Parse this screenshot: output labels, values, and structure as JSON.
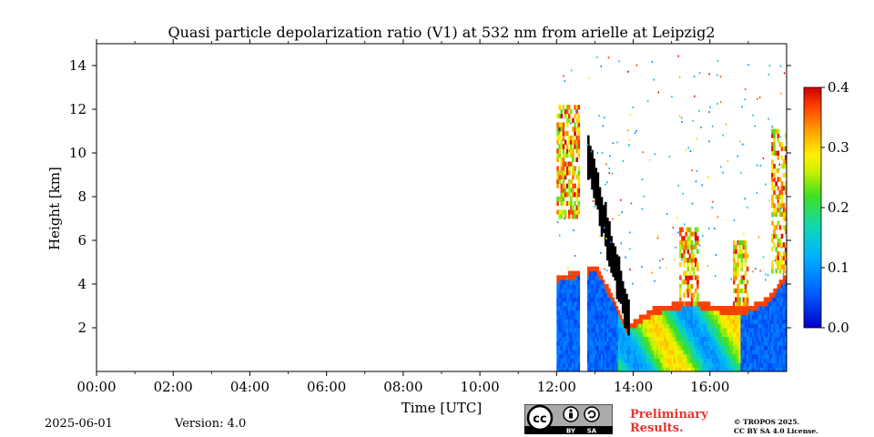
{
  "chart_data": {
    "type": "heatmap",
    "title": "Quasi particle depolarization ratio (V1) at 532 nm from arielle at Leipzig2",
    "xlabel": "Time [UTC]",
    "ylabel": "Height [km]",
    "x_range_hours": [
      0,
      18
    ],
    "y_range_km": [
      0,
      15
    ],
    "x_ticks": [
      "00:00",
      "02:00",
      "04:00",
      "06:00",
      "08:00",
      "10:00",
      "12:00",
      "14:00",
      "16:00"
    ],
    "y_ticks": [
      "2",
      "4",
      "6",
      "8",
      "10",
      "12",
      "14"
    ],
    "colorbar": {
      "range": [
        0.0,
        0.4
      ],
      "ticks": [
        "0.0",
        "0.1",
        "0.2",
        "0.3",
        "0.4"
      ],
      "colormap": "jet"
    },
    "data_start_hour": 12.0,
    "data_gaps_hours": [
      [
        12.6,
        12.78
      ]
    ],
    "aerosol_layer_top_km": [
      [
        12.0,
        4.3
      ],
      [
        12.5,
        4.5
      ],
      [
        13.0,
        4.8
      ],
      [
        13.5,
        3.2
      ],
      [
        13.8,
        2.0
      ],
      [
        14.5,
        2.8
      ],
      [
        15.0,
        3.0
      ],
      [
        15.5,
        3.2
      ],
      [
        16.0,
        3.0
      ],
      [
        16.5,
        2.8
      ],
      [
        17.0,
        2.9
      ],
      [
        17.5,
        3.3
      ],
      [
        18.0,
        4.5
      ]
    ],
    "cirrus_cloud_regions_km": [
      {
        "start_hour": 12.0,
        "end_hour": 12.6,
        "bottom": 7.0,
        "top": 12.0
      },
      {
        "start_hour": 15.2,
        "end_hour": 15.7,
        "bottom": 3.0,
        "top": 6.5
      },
      {
        "start_hour": 16.6,
        "end_hour": 17.0,
        "bottom": 3.0,
        "top": 6.0
      },
      {
        "start_hour": 17.6,
        "end_hour": 18.0,
        "bottom": 4.5,
        "top": 11.0
      }
    ],
    "no_signal_region": {
      "start_hour": 12.8,
      "end_hour": 13.9,
      "description_top_km": [
        10.0,
        2.2
      ]
    }
  },
  "footer": {
    "date": "2025-06-01",
    "version": "Version: 4.0",
    "preliminary": [
      "Preliminary",
      "Results."
    ],
    "copyright": [
      "© TROPOS 2025.",
      "CC BY SA 4.0 License."
    ],
    "license_badge": {
      "cc": "cc",
      "by": "BY",
      "sa": "SA"
    }
  },
  "colors": {
    "preliminary_text": "#e8322e",
    "badge_bg": "#a9aba9",
    "badge_dark": "#000000"
  }
}
